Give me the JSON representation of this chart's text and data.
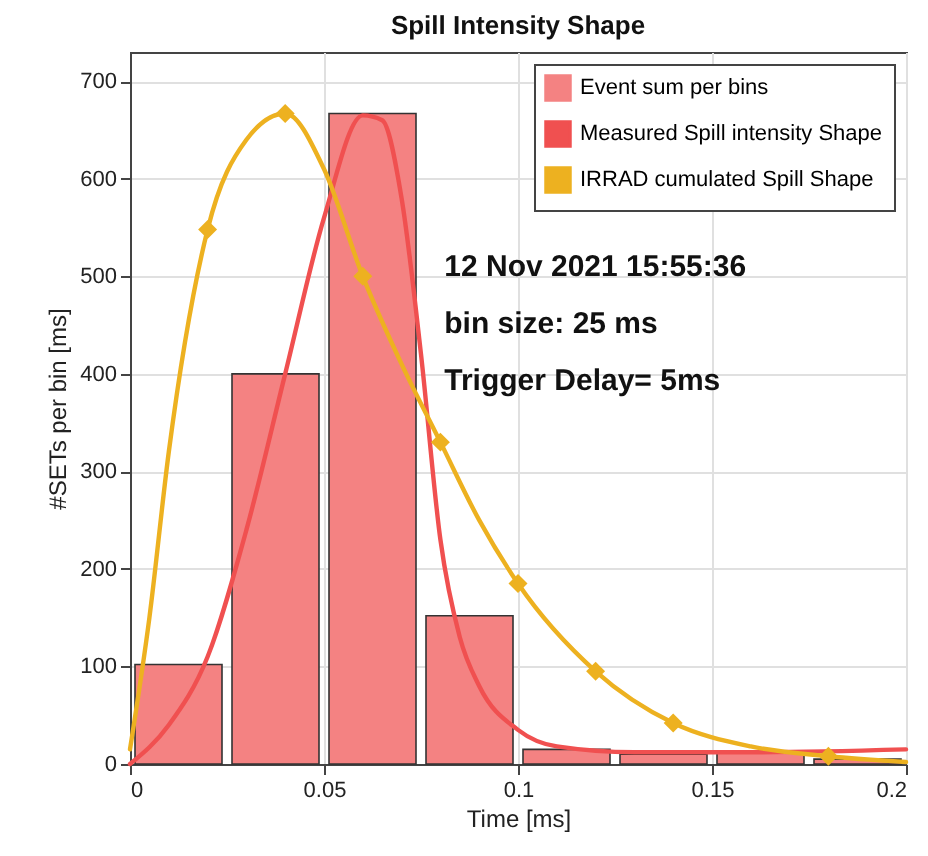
{
  "chart_data": {
    "type": "histogram",
    "title": "Spill Intensity Shape",
    "xlabel": "Time [ms]",
    "ylabel": "#SETs per bin [ms]",
    "bins": [
      0,
      0.025,
      0.05,
      0.075,
      0.1,
      0.125,
      0.15,
      0.175,
      0.2
    ],
    "series": [
      {
        "name": "Event sum per bins",
        "color": "#f48282",
        "values": [
          102,
          400,
          667,
          152,
          15,
          10,
          12,
          5
        ]
      },
      {
        "type": "line",
        "name": "Measured Spill intensity Shape",
        "color": "#f05050",
        "x": [
          0,
          0.01,
          0.02,
          0.03,
          0.04,
          0.05,
          0.06,
          0.065,
          0.07,
          0.075,
          0.08,
          0.085,
          0.09,
          0.1,
          0.11,
          0.13,
          0.16,
          0.2
        ],
        "values": [
          0,
          40,
          110,
          240,
          400,
          560,
          665,
          660,
          580,
          420,
          230,
          130,
          80,
          35,
          18,
          12,
          12,
          15
        ]
      },
      {
        "type": "line",
        "name": "IRRAD cumulated Spill Shape",
        "color": "#edb120",
        "x": [
          0,
          0.005,
          0.01,
          0.02,
          0.03,
          0.04,
          0.05,
          0.06,
          0.07,
          0.08,
          0.09,
          0.1,
          0.12,
          0.14,
          0.16,
          0.18,
          0.2
        ],
        "values": [
          15,
          150,
          320,
          548,
          640,
          667,
          610,
          500,
          410,
          330,
          250,
          185,
          95,
          42,
          18,
          8,
          2
        ]
      },
      {
        "type": "scatter",
        "color": "#edb120",
        "marker": "diamond",
        "x": [
          0.02,
          0.04,
          0.06,
          0.08,
          0.1,
          0.12,
          0.14,
          0.18
        ],
        "values": [
          548,
          667,
          500,
          330,
          185,
          95,
          42,
          8
        ]
      }
    ],
    "xlim": [
      0,
      0.2
    ],
    "xticks": [
      0,
      0.05,
      0.1,
      0.15,
      0.2
    ],
    "ylim": [
      0,
      730
    ],
    "yticks": [
      0,
      100,
      200,
      300,
      400,
      500,
      600,
      700
    ],
    "grid": true,
    "legend": "top right",
    "annotations": [
      "12 Nov 2021 15:55:36",
      "bin size: 25 ms",
      "Trigger Delay= 5ms"
    ]
  }
}
